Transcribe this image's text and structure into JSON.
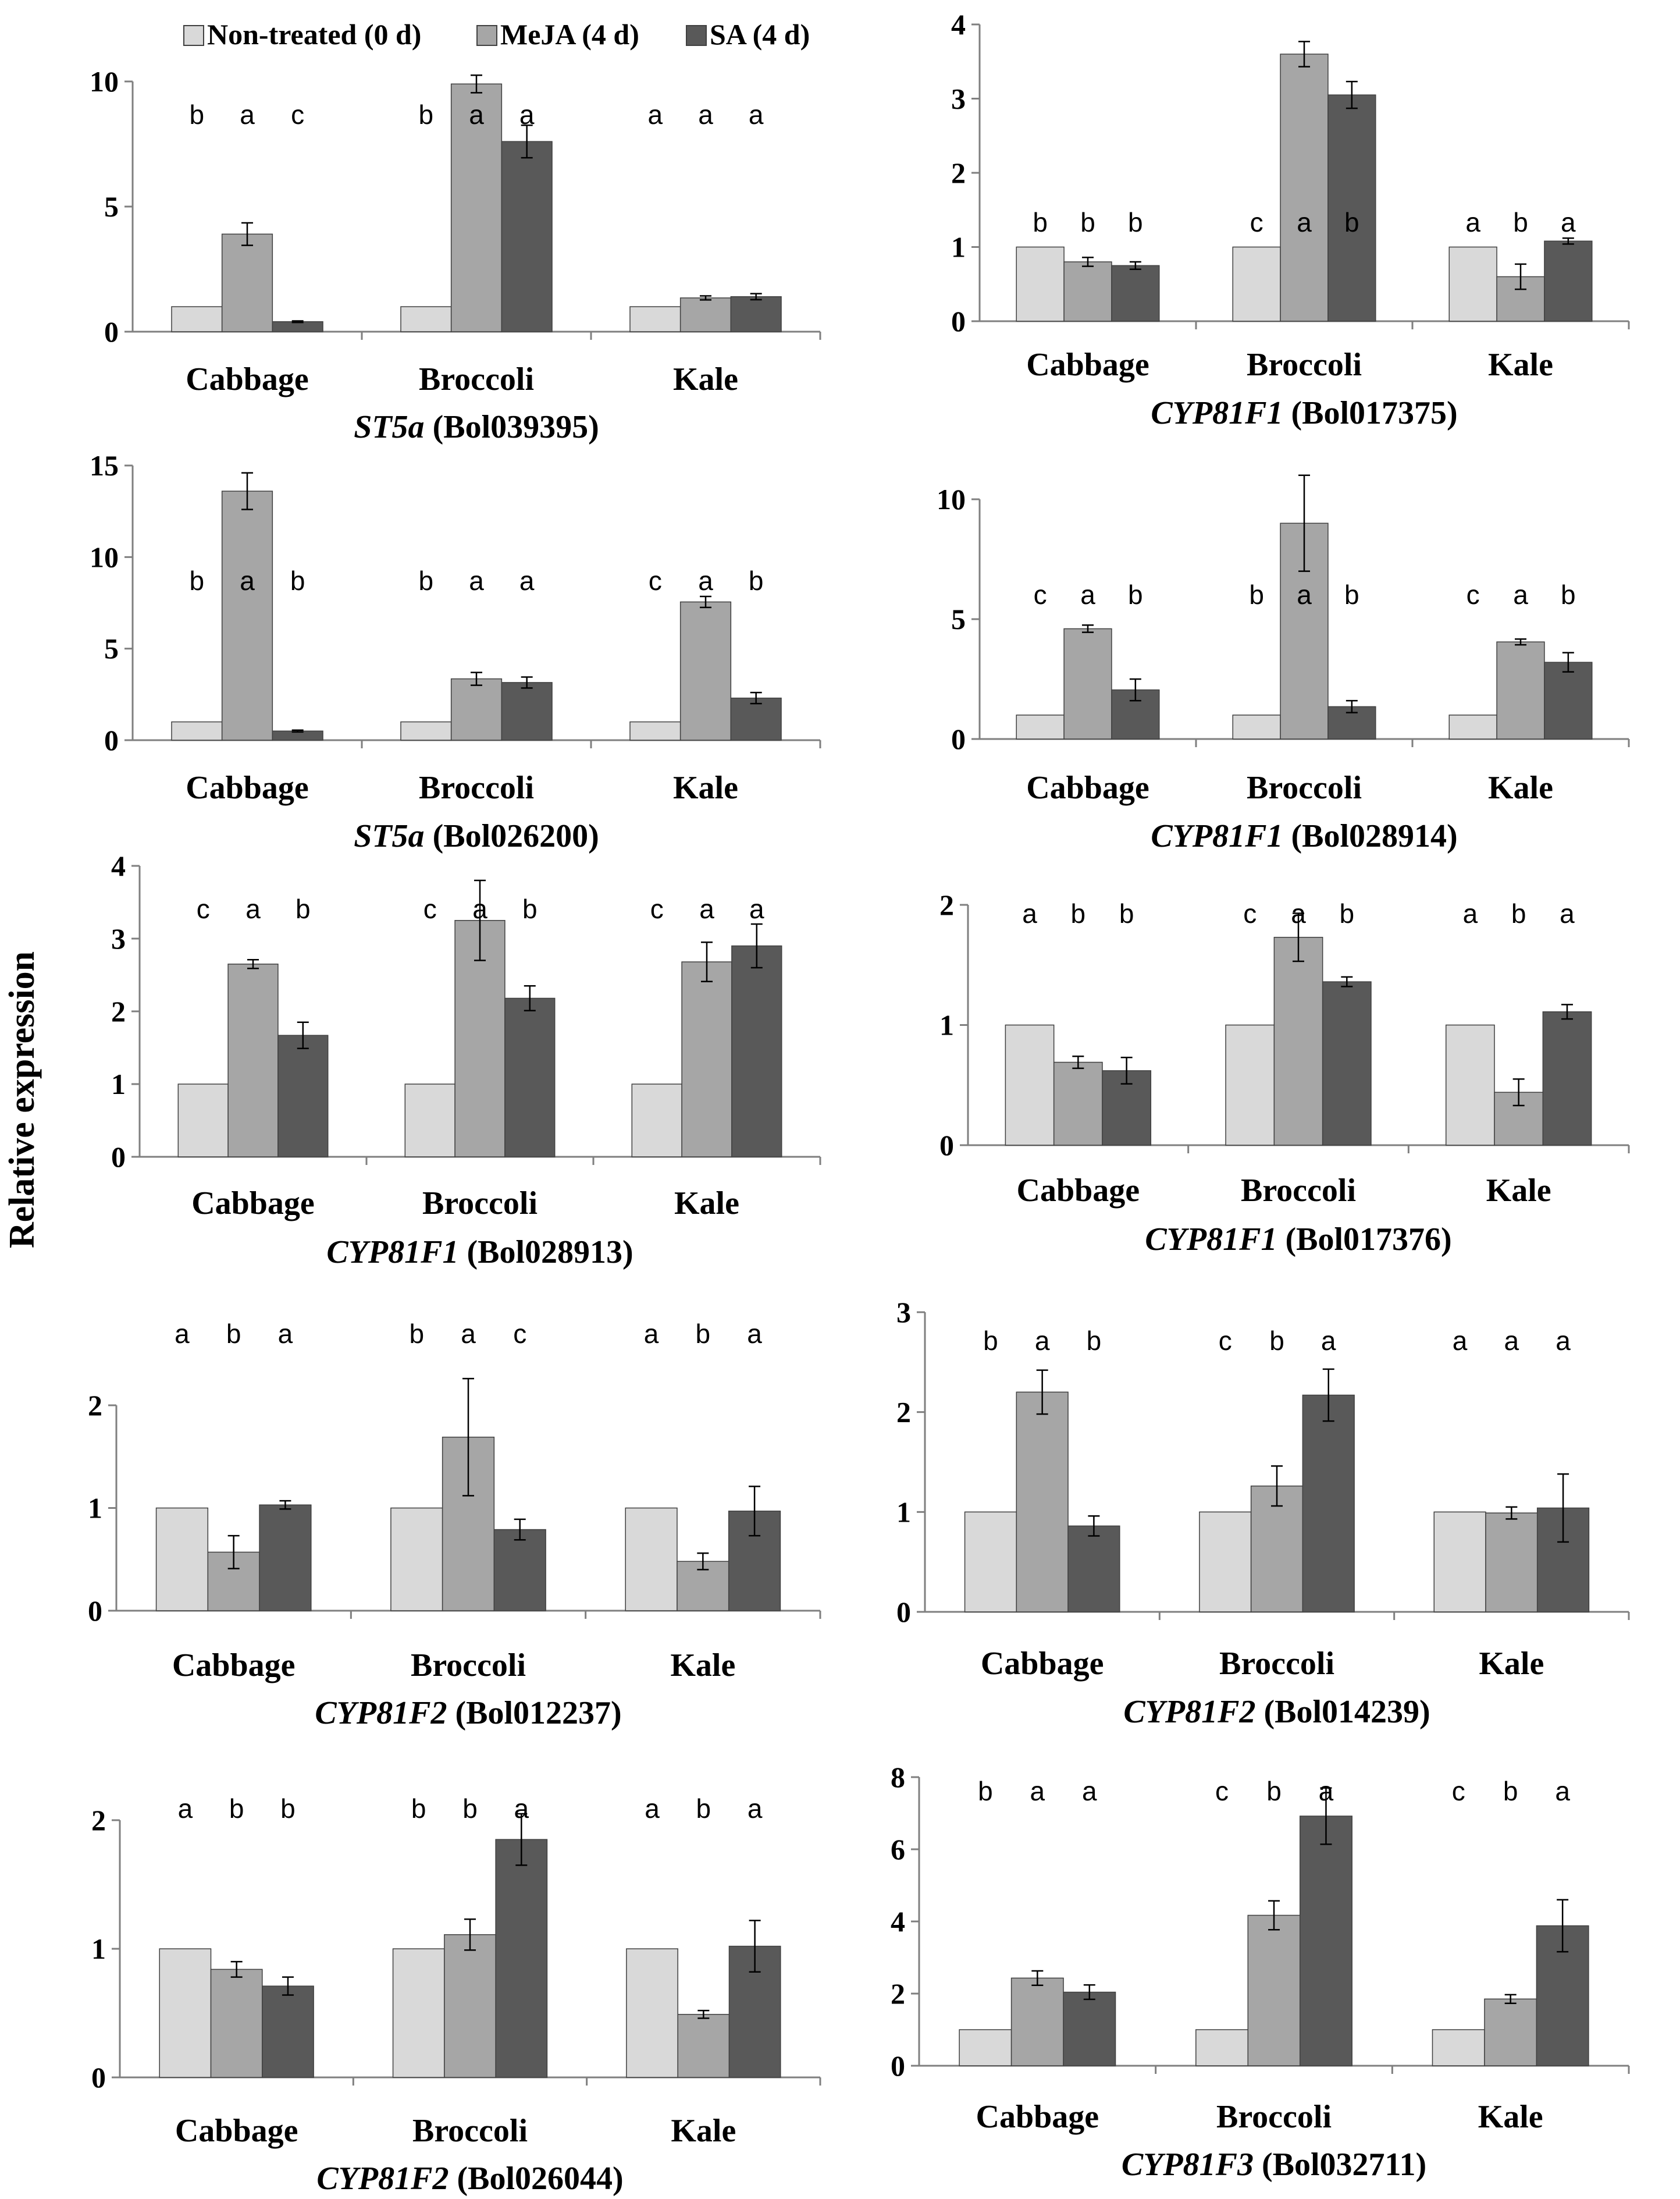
{
  "figure": {
    "ylabel": "Relative expression",
    "colors": {
      "non_treated": "#d9d9d9",
      "meja": "#a6a6a6",
      "sa": "#595959",
      "axis": "#7f7f7f"
    },
    "legend": [
      "Non-treated (0 d)",
      "MeJA (4 d)",
      "SA (4 d)"
    ]
  },
  "chart_data": [
    {
      "type": "bar",
      "title_gene": "ST5a",
      "title_id": "(Bol039395)",
      "categories": [
        "Cabbage",
        "Broccoli",
        "Kale"
      ],
      "ylim": [
        0,
        10
      ],
      "yticks": [
        0,
        5,
        10
      ],
      "yticklabels": [
        "0",
        "5",
        "10"
      ],
      "series": [
        {
          "name": "Non-treated (0 d)",
          "values": [
            1.0,
            1.0,
            1.0
          ],
          "errors": [
            0,
            0,
            0
          ]
        },
        {
          "name": "MeJA (4 d)",
          "values": [
            3.9,
            9.9,
            1.35
          ],
          "errors": [
            0.45,
            0.35,
            0.08
          ]
        },
        {
          "name": "SA (4 d)",
          "values": [
            0.4,
            7.6,
            1.4
          ],
          "errors": [
            0.03,
            0.65,
            0.12
          ]
        }
      ],
      "letters": [
        [
          "b",
          "a",
          "c"
        ],
        [
          "b",
          "a",
          "a"
        ],
        [
          "a",
          "a",
          "a"
        ]
      ]
    },
    {
      "type": "bar",
      "title_gene": "CYP81F1",
      "title_id": "(Bol017375)",
      "categories": [
        "Cabbage",
        "Broccoli",
        "Kale"
      ],
      "ylim": [
        0,
        4
      ],
      "yticks": [
        0,
        1,
        2,
        3,
        4
      ],
      "yticklabels": [
        "0",
        "1",
        "2",
        "3",
        "4"
      ],
      "series": [
        {
          "name": "Non-treated (0 d)",
          "values": [
            1.0,
            1.0,
            1.0
          ],
          "errors": [
            0,
            0,
            0
          ]
        },
        {
          "name": "MeJA (4 d)",
          "values": [
            0.8,
            3.6,
            0.6
          ],
          "errors": [
            0.06,
            0.17,
            0.17
          ]
        },
        {
          "name": "SA (4 d)",
          "values": [
            0.75,
            3.05,
            1.08
          ],
          "errors": [
            0.05,
            0.18,
            0.04
          ]
        }
      ],
      "letters": [
        [
          "b",
          "b",
          "b"
        ],
        [
          "c",
          "a",
          "b"
        ],
        [
          "a",
          "b",
          "a"
        ]
      ]
    },
    {
      "type": "bar",
      "title_gene": "ST5a",
      "title_id": "(Bol026200)",
      "categories": [
        "Cabbage",
        "Broccoli",
        "Kale"
      ],
      "ylim": [
        0,
        15
      ],
      "yticks": [
        0,
        5,
        10,
        15
      ],
      "yticklabels": [
        "0",
        "5",
        "10",
        "15"
      ],
      "series": [
        {
          "name": "Non-treated (0 d)",
          "values": [
            1.0,
            1.0,
            1.0
          ],
          "errors": [
            0,
            0,
            0
          ]
        },
        {
          "name": "MeJA (4 d)",
          "values": [
            13.6,
            3.35,
            7.55
          ],
          "errors": [
            1.0,
            0.35,
            0.3
          ]
        },
        {
          "name": "SA (4 d)",
          "values": [
            0.5,
            3.15,
            2.3
          ],
          "errors": [
            0.05,
            0.3,
            0.3
          ]
        }
      ],
      "letters": [
        [
          "b",
          "a",
          "b"
        ],
        [
          "b",
          "a",
          "a"
        ],
        [
          "c",
          "a",
          "b"
        ]
      ]
    },
    {
      "type": "bar",
      "title_gene": "CYP81F1",
      "title_id": "(Bol028914)",
      "categories": [
        "Cabbage",
        "Broccoli",
        "Kale"
      ],
      "ylim": [
        0,
        10
      ],
      "yticks": [
        0,
        5,
        10
      ],
      "yticklabels": [
        "0",
        "5",
        "10"
      ],
      "series": [
        {
          "name": "Non-treated (0 d)",
          "values": [
            1.0,
            1.0,
            1.0
          ],
          "errors": [
            0,
            0,
            0
          ]
        },
        {
          "name": "MeJA (4 d)",
          "values": [
            4.6,
            9.0,
            4.05
          ],
          "errors": [
            0.15,
            2.0,
            0.12
          ]
        },
        {
          "name": "SA (4 d)",
          "values": [
            2.05,
            1.35,
            3.2
          ],
          "errors": [
            0.45,
            0.25,
            0.4
          ]
        }
      ],
      "letters": [
        [
          "c",
          "a",
          "b"
        ],
        [
          "b",
          "a",
          "b"
        ],
        [
          "c",
          "a",
          "b"
        ]
      ]
    },
    {
      "type": "bar",
      "title_gene": "CYP81F1",
      "title_id": "(Bol028913)",
      "categories": [
        "Cabbage",
        "Broccoli",
        "Kale"
      ],
      "ylim": [
        0,
        4
      ],
      "yticks": [
        0,
        1,
        2,
        3,
        4
      ],
      "yticklabels": [
        "0",
        "1",
        "2",
        "3",
        "4"
      ],
      "series": [
        {
          "name": "Non-treated (0 d)",
          "values": [
            1.0,
            1.0,
            1.0
          ],
          "errors": [
            0,
            0,
            0
          ]
        },
        {
          "name": "MeJA (4 d)",
          "values": [
            2.65,
            3.25,
            2.68
          ],
          "errors": [
            0.06,
            0.55,
            0.27
          ]
        },
        {
          "name": "SA (4 d)",
          "values": [
            1.67,
            2.18,
            2.9
          ],
          "errors": [
            0.18,
            0.17,
            0.3
          ]
        }
      ],
      "letters": [
        [
          "c",
          "a",
          "b"
        ],
        [
          "c",
          "a",
          "b"
        ],
        [
          "c",
          "a",
          "a"
        ]
      ]
    },
    {
      "type": "bar",
      "title_gene": "CYP81F1",
      "title_id": "(Bol017376)",
      "categories": [
        "Cabbage",
        "Broccoli",
        "Kale"
      ],
      "ylim": [
        0,
        2
      ],
      "yticks": [
        0,
        1,
        2
      ],
      "yticklabels": [
        "0",
        "1",
        "2"
      ],
      "series": [
        {
          "name": "Non-treated (0 d)",
          "values": [
            1.0,
            1.0,
            1.0
          ],
          "errors": [
            0,
            0,
            0
          ]
        },
        {
          "name": "MeJA (4 d)",
          "values": [
            0.69,
            1.73,
            0.44
          ],
          "errors": [
            0.05,
            0.2,
            0.11
          ]
        },
        {
          "name": "SA (4 d)",
          "values": [
            0.62,
            1.36,
            1.11
          ],
          "errors": [
            0.11,
            0.04,
            0.06
          ]
        }
      ],
      "letters": [
        [
          "a",
          "b",
          "b"
        ],
        [
          "c",
          "a",
          "b"
        ],
        [
          "a",
          "b",
          "a"
        ]
      ]
    },
    {
      "type": "bar",
      "title_gene": "CYP81F2",
      "title_id": "(Bol012237)",
      "categories": [
        "Cabbage",
        "Broccoli",
        "Kale"
      ],
      "ylim": [
        0,
        2
      ],
      "yticks": [
        0,
        1,
        2
      ],
      "yticklabels": [
        "0",
        "1",
        "2"
      ],
      "series": [
        {
          "name": "Non-treated (0 d)",
          "values": [
            1.0,
            1.0,
            1.0
          ],
          "errors": [
            0,
            0,
            0
          ]
        },
        {
          "name": "MeJA (4 d)",
          "values": [
            0.57,
            1.69,
            0.48
          ],
          "errors": [
            0.16,
            0.57,
            0.08
          ]
        },
        {
          "name": "SA (4 d)",
          "values": [
            1.03,
            0.79,
            0.97
          ],
          "errors": [
            0.04,
            0.1,
            0.24
          ]
        }
      ],
      "letters": [
        [
          "a",
          "b",
          "a"
        ],
        [
          "b",
          "a",
          "c"
        ],
        [
          "a",
          "b",
          "a"
        ]
      ]
    },
    {
      "type": "bar",
      "title_gene": "CYP81F2",
      "title_id": "(Bol014239)",
      "categories": [
        "Cabbage",
        "Broccoli",
        "Kale"
      ],
      "ylim": [
        0,
        3
      ],
      "yticks": [
        0,
        1,
        2,
        3
      ],
      "yticklabels": [
        "0",
        "1",
        "2",
        "3"
      ],
      "series": [
        {
          "name": "Non-treated (0 d)",
          "values": [
            1.0,
            1.0,
            1.0
          ],
          "errors": [
            0,
            0,
            0
          ]
        },
        {
          "name": "MeJA (4 d)",
          "values": [
            2.2,
            1.26,
            0.99
          ],
          "errors": [
            0.22,
            0.2,
            0.06
          ]
        },
        {
          "name": "SA (4 d)",
          "values": [
            0.86,
            2.17,
            1.04
          ],
          "errors": [
            0.1,
            0.26,
            0.34
          ]
        }
      ],
      "letters": [
        [
          "b",
          "a",
          "b"
        ],
        [
          "c",
          "b",
          "a"
        ],
        [
          "a",
          "a",
          "a"
        ]
      ]
    },
    {
      "type": "bar",
      "title_gene": "CYP81F2",
      "title_id": "(Bol026044)",
      "categories": [
        "Cabbage",
        "Broccoli",
        "Kale"
      ],
      "ylim": [
        0,
        2
      ],
      "yticks": [
        0,
        1,
        2
      ],
      "yticklabels": [
        "0",
        "1",
        "2"
      ],
      "series": [
        {
          "name": "Non-treated (0 d)",
          "values": [
            1.0,
            1.0,
            1.0
          ],
          "errors": [
            0,
            0,
            0
          ]
        },
        {
          "name": "MeJA (4 d)",
          "values": [
            0.84,
            1.11,
            0.49
          ],
          "errors": [
            0.06,
            0.12,
            0.03
          ]
        },
        {
          "name": "SA (4 d)",
          "values": [
            0.71,
            1.85,
            1.02
          ],
          "errors": [
            0.07,
            0.2,
            0.2
          ]
        }
      ],
      "letters": [
        [
          "a",
          "b",
          "b"
        ],
        [
          "b",
          "b",
          "a"
        ],
        [
          "a",
          "b",
          "a"
        ]
      ]
    },
    {
      "type": "bar",
      "title_gene": "CYP81F3",
      "title_id": "(Bol032711)",
      "categories": [
        "Cabbage",
        "Broccoli",
        "Kale"
      ],
      "ylim": [
        0,
        8
      ],
      "yticks": [
        0,
        2,
        4,
        6,
        8
      ],
      "yticklabels": [
        "0",
        "2",
        "4",
        "6",
        "8"
      ],
      "series": [
        {
          "name": "Non-treated (0 d)",
          "values": [
            1.0,
            1.0,
            1.0
          ],
          "errors": [
            0,
            0,
            0
          ]
        },
        {
          "name": "MeJA (4 d)",
          "values": [
            2.43,
            4.17,
            1.85
          ],
          "errors": [
            0.2,
            0.4,
            0.12
          ]
        },
        {
          "name": "SA (4 d)",
          "values": [
            2.04,
            6.92,
            3.88
          ],
          "errors": [
            0.2,
            0.78,
            0.72
          ]
        }
      ],
      "letters": [
        [
          "b",
          "a",
          "a"
        ],
        [
          "c",
          "b",
          "a"
        ],
        [
          "c",
          "b",
          "a"
        ]
      ]
    }
  ]
}
